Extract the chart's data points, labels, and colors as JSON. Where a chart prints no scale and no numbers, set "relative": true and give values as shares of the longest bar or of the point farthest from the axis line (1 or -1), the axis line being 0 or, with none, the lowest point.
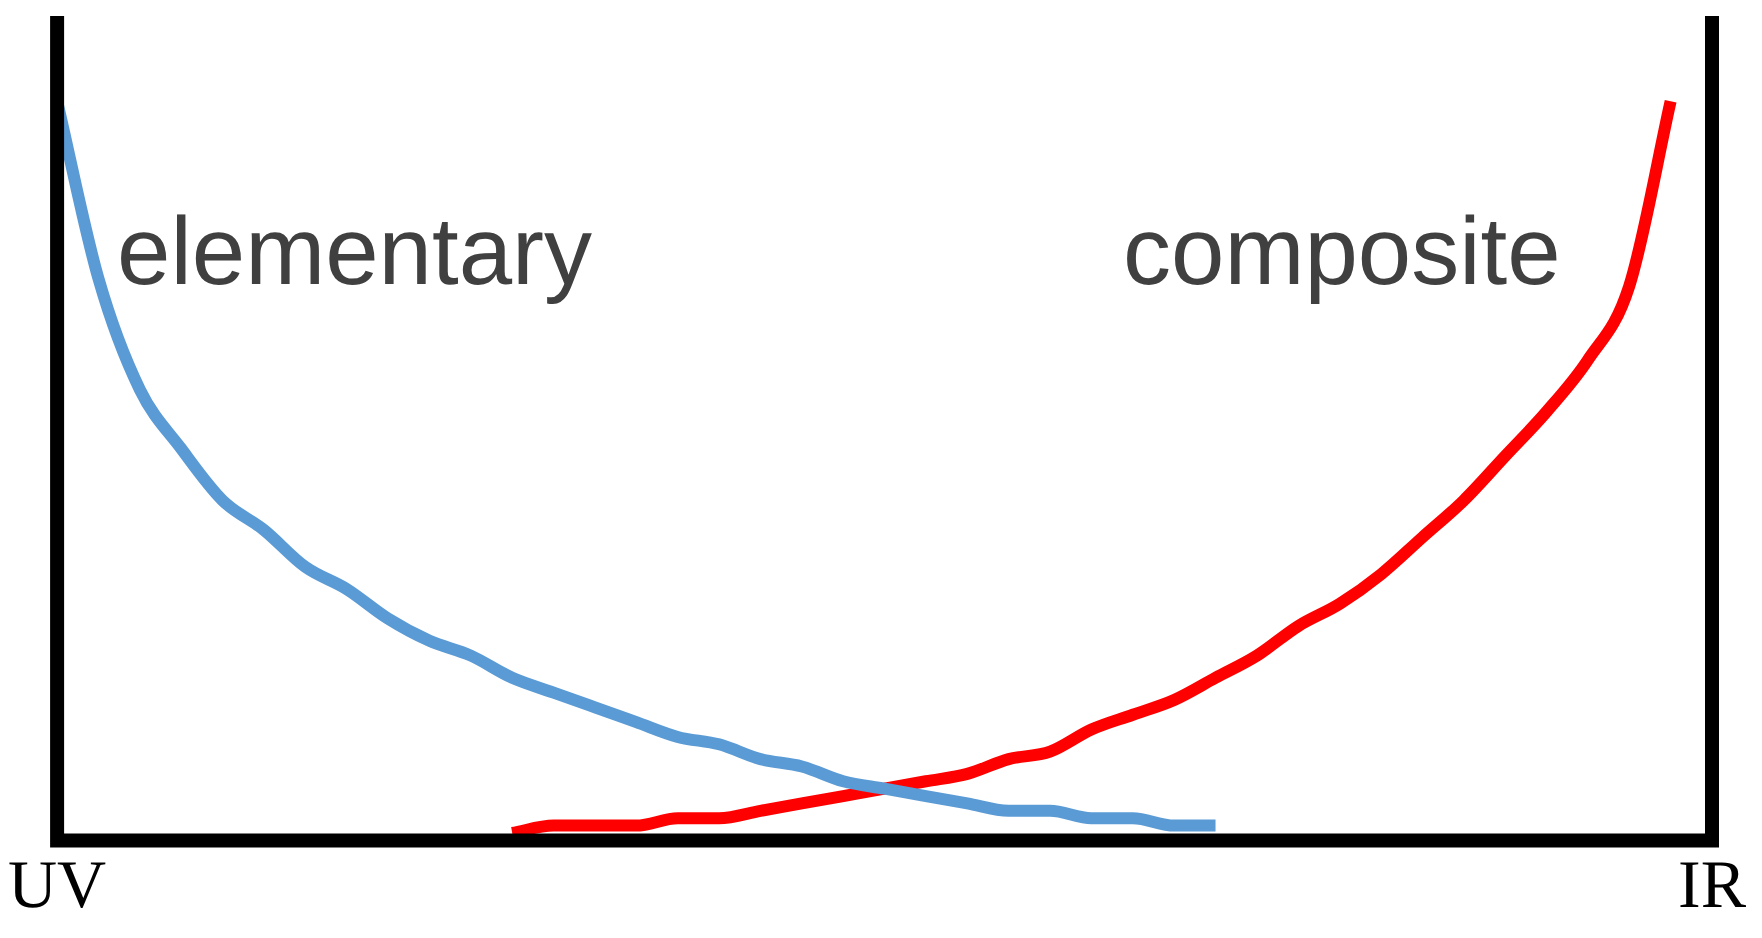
{
  "chart_data": {
    "type": "line",
    "relative": true,
    "categories": [
      "UV",
      null,
      null,
      null,
      null,
      null,
      null,
      null,
      null,
      null,
      null,
      null,
      null,
      null,
      null,
      null,
      null,
      null,
      null,
      null,
      null,
      null,
      null,
      null,
      null,
      null,
      null,
      null,
      null,
      null,
      null,
      null,
      null,
      null,
      null,
      null,
      null,
      null,
      null,
      null,
      "IR"
    ],
    "grid": false,
    "legend": false,
    "marker": "none",
    "line_style": "solid",
    "series": [
      {
        "name": "elementary",
        "color": "#5b9bd5",
        "values": [
          1,
          0.76,
          0.61,
          0.53,
          0.46,
          0.42,
          0.37,
          0.34,
          0.3,
          0.27,
          0.25,
          0.22,
          0.2,
          0.18,
          0.16,
          0.14,
          0.13,
          0.11,
          0.1,
          0.08,
          0.07,
          0.06,
          0.05,
          0.04,
          0.04,
          0.03,
          0.03,
          0.02,
          0.02,
          null,
          null,
          null,
          null,
          null,
          null,
          null,
          null,
          null,
          null,
          null,
          null
        ]
      },
      {
        "name": "composite",
        "color": "#ff0000",
        "values": [
          null,
          null,
          null,
          null,
          null,
          null,
          null,
          null,
          null,
          null,
          null,
          0.01,
          0.02,
          0.02,
          0.02,
          0.03,
          0.03,
          0.04,
          0.05,
          0.06,
          0.07,
          0.08,
          0.09,
          0.11,
          0.12,
          0.15,
          0.17,
          0.19,
          0.22,
          0.25,
          0.29,
          0.32,
          0.36,
          0.41,
          0.46,
          0.52,
          0.58,
          0.65,
          0.75,
          1,
          null
        ]
      }
    ]
  }
}
